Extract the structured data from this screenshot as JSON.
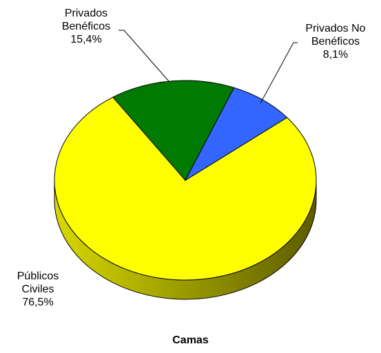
{
  "chart_data": {
    "type": "pie",
    "title": "Camas",
    "categories": [
      "Públicos Civiles",
      "Privados Benéficos",
      "Privados No Benéficos"
    ],
    "values": [
      76.5,
      15.4,
      8.1
    ],
    "value_labels": [
      "76,5%",
      "15,4%",
      "8,1%"
    ],
    "colors": [
      "#ffff00",
      "#007a00",
      "#3366ff"
    ]
  }
}
